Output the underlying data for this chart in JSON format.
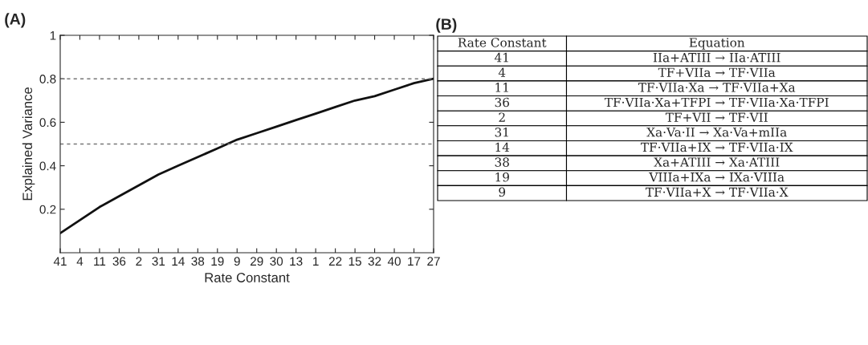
{
  "chart_data": [
    {
      "type": "line",
      "title": "(A)",
      "xlabel": "Rate Constant",
      "ylabel": "Explained Variance",
      "categories": [
        "41",
        "4",
        "11",
        "36",
        "2",
        "31",
        "14",
        "38",
        "19",
        "9",
        "29",
        "30",
        "13",
        "1",
        "22",
        "15",
        "32",
        "40",
        "17",
        "27"
      ],
      "series": [
        {
          "color": "#111111",
          "values": [
            0.09,
            0.15,
            0.21,
            0.26,
            0.31,
            0.36,
            0.4,
            0.44,
            0.48,
            0.52,
            0.55,
            0.58,
            0.61,
            0.64,
            0.67,
            0.7,
            0.72,
            0.75,
            0.78,
            0.8
          ]
        }
      ],
      "ylim": [
        0,
        1
      ],
      "yticks": [
        0.2,
        0.4,
        0.6,
        0.8,
        1
      ],
      "ref_lines": [
        {
          "axis": "y",
          "value": 0.8,
          "color": "#777777",
          "line_style": "dashed"
        },
        {
          "axis": "y",
          "value": 0.5,
          "color": "#777777",
          "line_style": "dashed"
        }
      ],
      "grid": false,
      "legend": false,
      "marker": "none",
      "line_style": "solid"
    },
    {
      "type": "other",
      "title": "(B)",
      "annotations": [
        "Rate Constant",
        "Equation",
        "41",
        "IIa+ATIII → IIa·ATIII",
        "4",
        "TF+VIIa → TF·VIIa",
        "11",
        "TF·VIIa·Xa → TF·VIIa+Xa",
        "36",
        "TF·VIIa·Xa+TFPI → TF·VIIa·Xa·TFPI",
        "2",
        "TF+VII → TF·VII",
        "31",
        "Xa·Va·II → Xa·Va+mIIa",
        "14",
        "TF·VIIa+IX → TF·VIIa·IX",
        "38",
        "Xa+ATIII → Xa·ATIII",
        "19",
        "VIIIa+IXa → IXa·VIIIa",
        "9",
        "TF·VIIa+X → TF·VIIa·X"
      ]
    }
  ]
}
